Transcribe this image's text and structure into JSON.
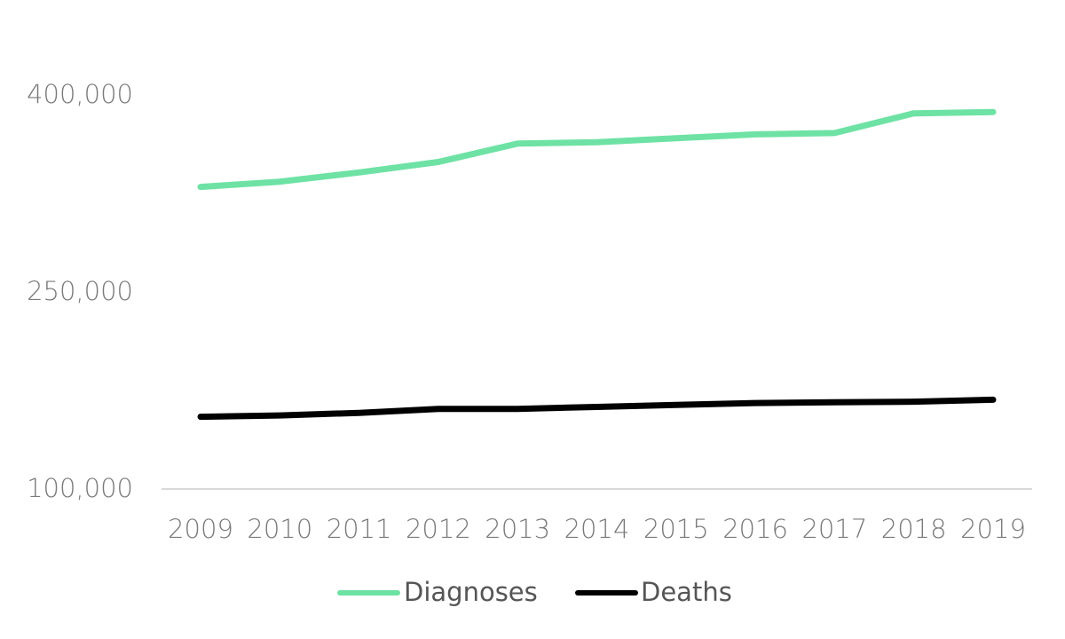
{
  "chart_data": {
    "type": "line",
    "title": "",
    "xlabel": "",
    "ylabel": "",
    "categories": [
      "2009",
      "2010",
      "2011",
      "2012",
      "2013",
      "2014",
      "2015",
      "2016",
      "2017",
      "2018",
      "2019"
    ],
    "series": [
      {
        "name": "Diagnoses",
        "color": "#6ee2a4",
        "values": [
          330000,
          334000,
          341000,
          349000,
          363000,
          364000,
          367000,
          370000,
          371000,
          386000,
          387000
        ]
      },
      {
        "name": "Deaths",
        "color": "#000000",
        "values": [
          155000,
          156000,
          158000,
          161000,
          161000,
          162500,
          164000,
          165500,
          166000,
          166500,
          168000
        ]
      }
    ],
    "y_ticks": [
      "100,000",
      "250,000",
      "400,000"
    ],
    "y_tick_values": [
      100000,
      250000,
      400000
    ],
    "ylim": [
      100000,
      400000
    ],
    "grid": false,
    "legend_position": "bottom"
  }
}
